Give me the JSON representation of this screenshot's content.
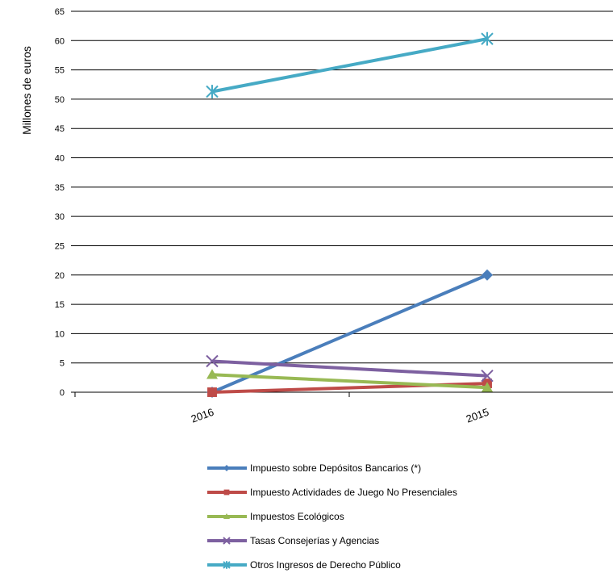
{
  "chart_data": {
    "type": "line",
    "title": "",
    "xlabel": "",
    "ylabel": "Millones de euros",
    "categories": [
      "2016",
      "2015"
    ],
    "ylim": [
      0,
      65
    ],
    "yticks": [
      0,
      5,
      10,
      15,
      20,
      25,
      30,
      35,
      40,
      45,
      50,
      55,
      60,
      65
    ],
    "grid": "horizontal",
    "legend_position": "bottom",
    "series": [
      {
        "name": "Impuesto sobre Depósitos Bancarios (*)",
        "values": [
          0,
          20
        ],
        "color": "#4a7ebb",
        "marker": "diamond"
      },
      {
        "name": "Impuesto Actividades de Juego No Presenciales",
        "values": [
          0,
          1.5
        ],
        "color": "#be4b48",
        "marker": "square"
      },
      {
        "name": "Impuestos Ecológicos",
        "values": [
          3,
          0.8
        ],
        "color": "#98b954",
        "marker": "triangle"
      },
      {
        "name": "Tasas Consejerías y Agencias",
        "values": [
          5.3,
          2.8
        ],
        "color": "#7d60a0",
        "marker": "x"
      },
      {
        "name": "Otros Ingresos de Derecho Público",
        "values": [
          51.3,
          60.3
        ],
        "color": "#46aac5",
        "marker": "star"
      }
    ]
  }
}
